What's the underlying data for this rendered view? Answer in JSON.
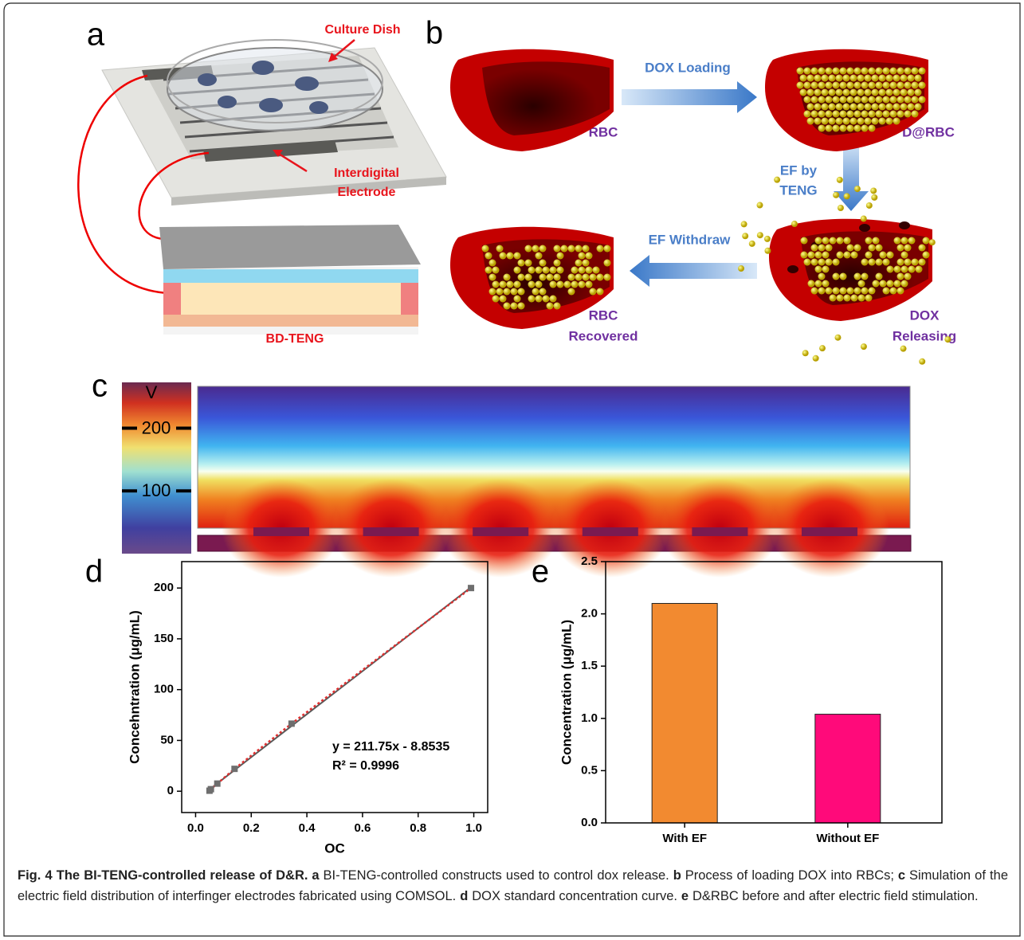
{
  "panels": {
    "a": {
      "label": "a",
      "culture_dish": "Culture Dish",
      "electrode": [
        "Interdigital",
        "Electrode"
      ],
      "teng": "BD-TENG"
    },
    "b": {
      "label": "b",
      "loading": "DOX Loading",
      "rbc": "RBC",
      "drbc": "D@RBC",
      "ef_by": [
        "EF by",
        "TENG"
      ],
      "withdraw": "EF Withdraw",
      "recovered": [
        "RBC",
        "Recovered"
      ],
      "releasing": [
        "DOX",
        "Releasing"
      ]
    },
    "c": {
      "label": "c",
      "colorbar": {
        "unit": "V",
        "lim": [
          0,
          273
        ],
        "ticks": [
          200,
          100
        ]
      }
    },
    "d": {
      "label": "d"
    },
    "e": {
      "label": "e"
    }
  },
  "chart_data": [
    {
      "type": "scatter",
      "x": [
        0.05,
        0.055,
        0.078,
        0.14,
        0.345,
        0.99
      ],
      "values": [
        0.5,
        2,
        7.5,
        22,
        66.5,
        200
      ],
      "color": "#6e6e6e",
      "line_color": "#e03030",
      "fit": {
        "x": [
          0.05,
          0.99
        ],
        "values": [
          1.7,
          200.8
        ],
        "color": "#5a5a5a"
      },
      "annotations": [
        "y = 211.75x - 8.8535",
        "R² = 0.9996"
      ],
      "x_label": "OC",
      "y_label": "Concehntration (μg/mL)",
      "xlim": [
        -0.05,
        1.05
      ],
      "ylim": [
        -21,
        226
      ],
      "xticks": [
        {
          "value": 0,
          "label": "0.0"
        },
        0.2,
        0.4,
        0.6,
        0.8,
        {
          "value": 1,
          "label": "1.0"
        }
      ],
      "yticks": [
        0,
        50,
        100,
        150,
        200
      ]
    },
    {
      "type": "bar",
      "categories": [
        "With EF",
        "Without EF"
      ],
      "values": [
        2.1,
        1.04
      ],
      "colors": [
        "#f28a30",
        "#ff0a7a"
      ],
      "y_label": "Concentration (μg/mL)",
      "ylim": [
        0,
        2.5
      ],
      "yticks": [
        {
          "value": 0,
          "label": "0.0"
        },
        0.5,
        {
          "value": 1,
          "label": "1.0"
        },
        1.5,
        {
          "value": 2,
          "label": "2.0"
        },
        2.5
      ]
    }
  ],
  "caption": [
    {
      "text": "Fig. 4 The BI-TENG-controlled release of D&R.",
      "bold": true
    },
    {
      "text": "a",
      "bold": true
    },
    {
      "text": "BI-TENG-controlled constructs used to control dox release.",
      "bold": false
    },
    {
      "text": "b",
      "bold": true
    },
    {
      "text": "Process of loading DOX into RBCs;",
      "bold": false
    },
    {
      "text": "c",
      "bold": true
    },
    {
      "text": "Simulation of the electric field distribution of interfinger electrodes fabricated using COMSOL.",
      "bold": false
    },
    {
      "text": "d",
      "bold": true
    },
    {
      "text": "DOX standard concentration curve.",
      "bold": false
    },
    {
      "text": "e",
      "bold": true
    },
    {
      "text": "D&RBC before and after electric field stimulation.",
      "bold": false
    }
  ]
}
